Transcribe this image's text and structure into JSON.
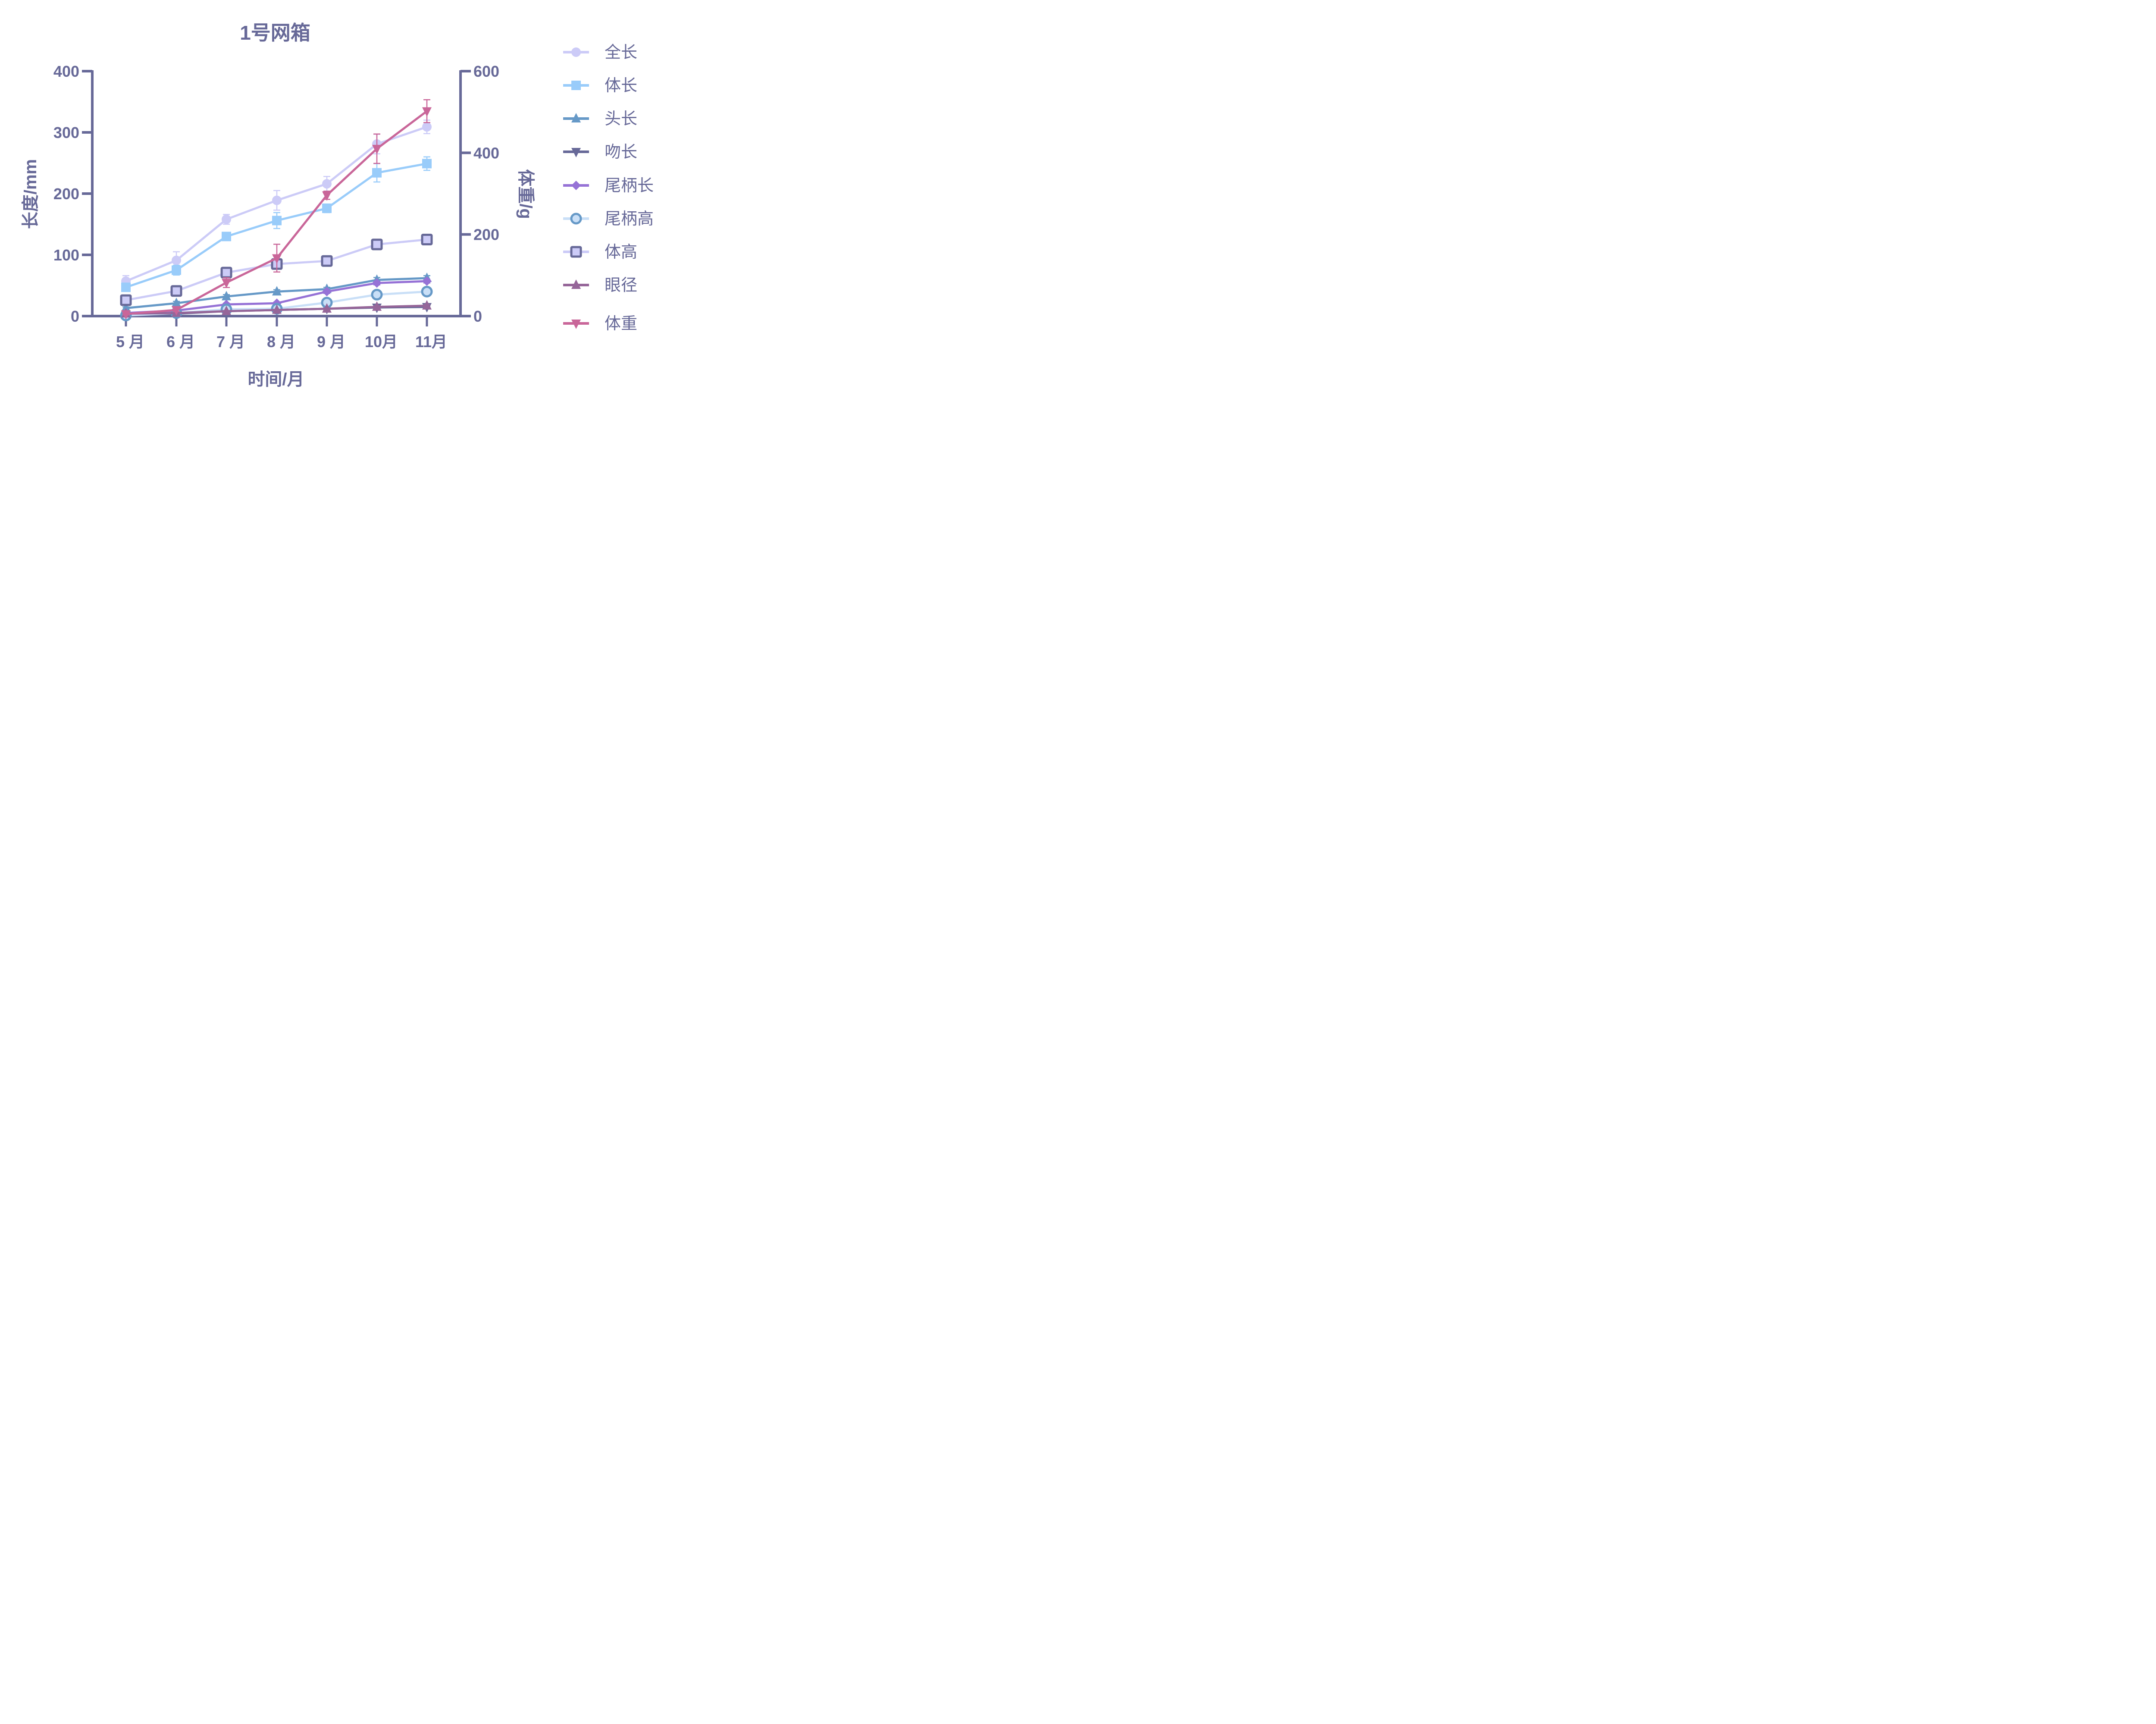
{
  "chart_data": {
    "type": "line",
    "title": "1号网箱",
    "xlabel": "时间/月",
    "ylabel": "长度/mm",
    "y2label": "体重/g",
    "categories": [
      "5 月",
      "6 月",
      "7 月",
      "8 月",
      "9 月",
      "10月",
      "11月"
    ],
    "ylim": [
      0,
      400
    ],
    "y2lim": [
      0,
      600
    ],
    "yticks": [
      "0",
      "100",
      "200",
      "300",
      "400"
    ],
    "y2ticks": [
      "0",
      "200",
      "400",
      "600"
    ],
    "grid": false,
    "legend_position": "right",
    "series": [
      {
        "name": "全长",
        "axis": "left",
        "marker": "circle",
        "color": "#cccbf7",
        "values": [
          57,
          91,
          158,
          189,
          216,
          281,
          309
        ],
        "error": [
          9,
          14,
          8,
          16,
          12,
          16,
          11
        ]
      },
      {
        "name": "体长",
        "axis": "left",
        "marker": "square",
        "color": "#99ccfa",
        "values": [
          47,
          75,
          130,
          156,
          176,
          234,
          249
        ],
        "error": [
          5,
          8,
          5,
          13,
          7,
          15,
          11
        ]
      },
      {
        "name": "头长",
        "axis": "left",
        "marker": "triangle-up",
        "color": "#6699c7",
        "values": [
          13,
          21,
          32,
          40,
          44,
          59,
          62
        ],
        "error": [
          2,
          3,
          3,
          3,
          3,
          4,
          4
        ]
      },
      {
        "name": "吻长",
        "axis": "left",
        "marker": "triangle-down",
        "color": "#676998",
        "values": [
          2,
          4,
          8,
          10,
          12,
          14,
          15
        ],
        "error": [
          1,
          1,
          1,
          1,
          1,
          2,
          2
        ]
      },
      {
        "name": "尾柄长",
        "axis": "left",
        "marker": "diamond",
        "color": "#9672d6",
        "values": [
          5,
          9,
          19,
          21,
          40,
          54,
          57
        ],
        "error": [
          1,
          1,
          2,
          2,
          3,
          3,
          3
        ]
      },
      {
        "name": "尾柄高",
        "axis": "left",
        "marker": "circle-open",
        "color": "#c9dff7",
        "edge": "#6699c7",
        "values": [
          1,
          5,
          11,
          12,
          22,
          35,
          40
        ],
        "error": [
          1,
          1,
          1,
          1,
          2,
          2,
          2
        ]
      },
      {
        "name": "体高",
        "axis": "left",
        "marker": "square-open",
        "color": "#cccbf7",
        "edge": "#676998",
        "values": [
          26,
          41,
          71,
          85,
          90,
          117,
          125
        ],
        "error": [
          2,
          3,
          3,
          3,
          3,
          4,
          4
        ]
      },
      {
        "name": "眼径",
        "axis": "left",
        "marker": "triangle-up",
        "color": "#966699",
        "values": [
          4,
          5,
          8,
          10,
          12,
          15,
          17
        ],
        "error": [
          1,
          1,
          1,
          1,
          1,
          2,
          2
        ]
      },
      {
        "name": "体重",
        "axis": "right",
        "marker": "triangle-down",
        "color": "#c96699",
        "values": [
          5,
          15,
          82,
          142,
          296,
          410,
          502
        ],
        "error": [
          2,
          4,
          12,
          34,
          10,
          36,
          28
        ]
      }
    ]
  }
}
